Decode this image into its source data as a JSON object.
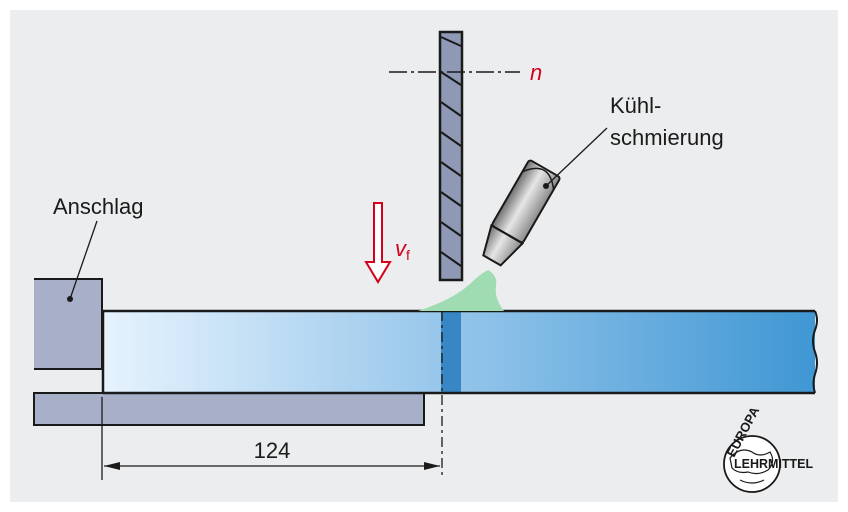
{
  "labels": {
    "stop": "Anschlag",
    "coolant_line1": "Kühl-",
    "coolant_line2": "schmierung",
    "speed_symbol": "n",
    "feed_main": "v",
    "feed_sub": "f",
    "dimension": "124"
  },
  "logo": {
    "top": "EUROPA",
    "bottom": "LEHRMITTEL"
  },
  "colors": {
    "background": "#ecedee",
    "part_stop": "#a7afc9",
    "workpiece_light": "#e3f1fc",
    "workpiece_dark": "#3f9ad6",
    "blade": "#8f99b5",
    "coolant": "#9fdcb1",
    "feed_arrow": "#d4001c",
    "speed_label": "#d4001c"
  }
}
